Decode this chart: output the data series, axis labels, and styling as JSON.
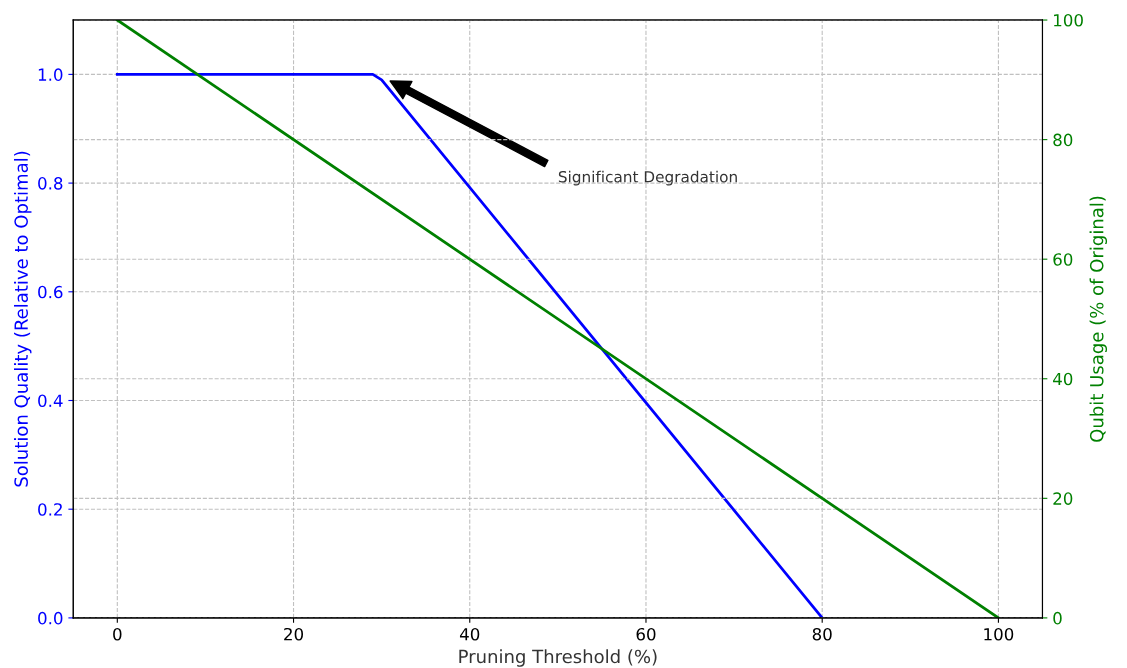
{
  "chart_data": {
    "type": "line",
    "xlabel": "Pruning Threshold (%)",
    "ylabel": "Solution Quality (Relative to Optimal)",
    "y2label": "Qubit Usage (% of Original)",
    "series": [
      {
        "color": "#0000ff",
        "x": [
          0,
          29,
          30,
          80
        ],
        "values": [
          1.0,
          1.0,
          0.99,
          0.0
        ]
      },
      {
        "color": "#008000",
        "axis": "y2",
        "x": [
          0,
          100
        ],
        "values": [
          100,
          0
        ]
      }
    ],
    "xlim": [
      -5,
      105
    ],
    "xticks": [
      0,
      20,
      40,
      60,
      80,
      100
    ],
    "ylim": [
      0,
      1.1
    ],
    "yticks": [
      {
        "value": 0,
        "label": "0.0"
      },
      {
        "value": 0.2,
        "label": "0.2"
      },
      {
        "value": 0.4,
        "label": "0.4"
      },
      {
        "value": 0.6,
        "label": "0.6"
      },
      {
        "value": 0.8,
        "label": "0.8"
      },
      {
        "value": 1.0,
        "label": "1.0"
      }
    ],
    "y2lim": [
      0,
      100
    ],
    "y2ticks": [
      0,
      20,
      40,
      60,
      80,
      100
    ],
    "annotations": [
      "Significant Degradation"
    ],
    "grid": true,
    "legend": false,
    "line_style": "solid",
    "marker": "none"
  }
}
